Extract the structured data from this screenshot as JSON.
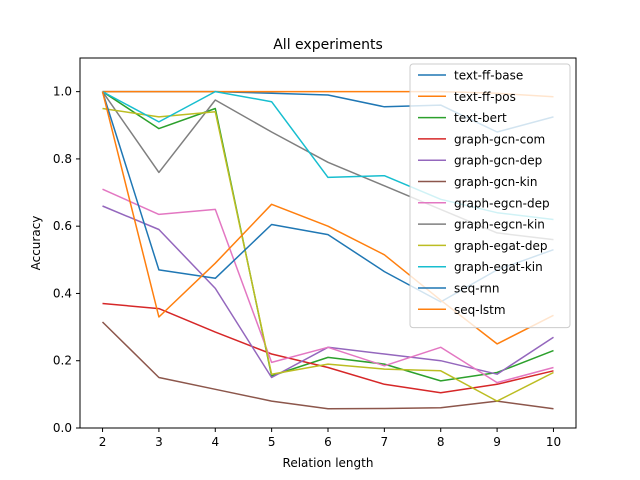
{
  "chart_data": {
    "type": "line",
    "title": "All experiments",
    "xlabel": "Relation length",
    "ylabel": "Accuracy",
    "x": [
      2,
      3,
      4,
      5,
      6,
      7,
      8,
      9,
      10
    ],
    "xlim": [
      1.6,
      10.4
    ],
    "ylim": [
      0.0,
      1.1
    ],
    "xticks": [
      "2",
      "3",
      "4",
      "5",
      "6",
      "7",
      "8",
      "9",
      "10"
    ],
    "yticks": [
      "0.0",
      "0.2",
      "0.4",
      "0.6",
      "0.8",
      "1.0"
    ],
    "grid": false,
    "legend_position": "top-right",
    "series": [
      {
        "name": "text-ff-base",
        "color": "#1f77b4",
        "values": [
          1.0,
          1.0,
          1.0,
          0.995,
          0.99,
          0.955,
          0.96,
          0.88,
          0.925
        ]
      },
      {
        "name": "text-ff-pos",
        "color": "#ff7f0e",
        "values": [
          1.0,
          1.0,
          1.0,
          1.0,
          1.0,
          1.0,
          1.0,
          0.995,
          0.985
        ]
      },
      {
        "name": "text-bert",
        "color": "#2ca02c",
        "values": [
          1.0,
          0.89,
          0.95,
          0.155,
          0.21,
          0.19,
          0.14,
          0.165,
          0.23
        ]
      },
      {
        "name": "graph-gcn-com",
        "color": "#d62728",
        "values": [
          0.37,
          0.355,
          0.285,
          0.22,
          0.18,
          0.13,
          0.105,
          0.13,
          0.17
        ]
      },
      {
        "name": "graph-gcn-dep",
        "color": "#9467bd",
        "values": [
          0.66,
          0.59,
          0.415,
          0.15,
          0.24,
          0.22,
          0.2,
          0.16,
          0.27
        ]
      },
      {
        "name": "graph-gcn-kin",
        "color": "#8c564b",
        "values": [
          0.315,
          0.15,
          0.115,
          0.08,
          0.057,
          0.058,
          0.06,
          0.08,
          0.057
        ]
      },
      {
        "name": "graph-egcn-dep",
        "color": "#e377c2",
        "values": [
          0.71,
          0.635,
          0.65,
          0.195,
          0.24,
          0.185,
          0.24,
          0.135,
          0.18
        ]
      },
      {
        "name": "graph-egcn-kin",
        "color": "#7f7f7f",
        "values": [
          1.0,
          0.76,
          0.975,
          0.88,
          0.79,
          0.72,
          0.65,
          0.58,
          0.56
        ]
      },
      {
        "name": "graph-egat-dep",
        "color": "#bcbd22",
        "values": [
          0.95,
          0.925,
          0.94,
          0.16,
          0.19,
          0.175,
          0.17,
          0.08,
          0.165
        ]
      },
      {
        "name": "graph-egat-kin",
        "color": "#17becf",
        "values": [
          1.0,
          0.91,
          1.0,
          0.97,
          0.745,
          0.75,
          0.68,
          0.64,
          0.62
        ]
      },
      {
        "name": "seq-rnn",
        "color": "#1f77b4",
        "values": [
          1.0,
          0.47,
          0.445,
          0.605,
          0.575,
          0.465,
          0.375,
          0.47,
          0.53
        ]
      },
      {
        "name": "seq-lstm",
        "color": "#ff7f0e",
        "values": [
          1.0,
          0.33,
          0.49,
          0.665,
          0.6,
          0.515,
          0.38,
          0.25,
          0.335
        ]
      }
    ]
  }
}
